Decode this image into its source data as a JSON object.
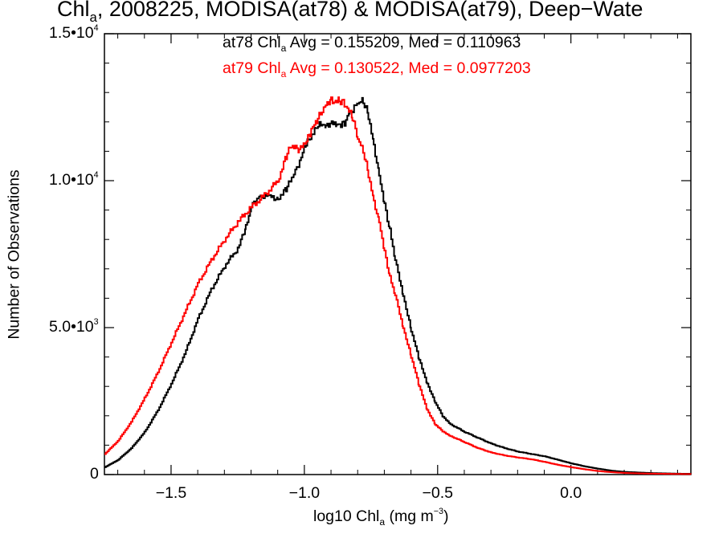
{
  "chart_data": {
    "type": "line",
    "step": true,
    "title": {
      "pre": "Chl",
      "sub": "a",
      "post": ", 2008225, MODISA(at78) & MODISA(at79), Deep−Wate"
    },
    "legend": [
      {
        "pre": "at78 Chl",
        "sub": "a",
        "post": " Avg = 0.155209, Med = 0.110963",
        "color": "#000000"
      },
      {
        "pre": "at79 Chl",
        "sub": "a",
        "post": " Avg = 0.130522, Med = 0.0977203",
        "color": "#ff0000"
      }
    ],
    "xlabel": {
      "pre": "log10 Chl",
      "sub": "a",
      "mid": " (mg m",
      "sup": "−3",
      "post": ")"
    },
    "ylabel": "Number of Observations",
    "xlim": [
      -1.75,
      0.45
    ],
    "ylim": [
      0,
      15000
    ],
    "xticks": [
      {
        "value": -1.5,
        "label": "−1.5"
      },
      {
        "value": -1.0,
        "label": "−1.0"
      },
      {
        "value": -0.5,
        "label": "−0.5"
      },
      {
        "value": 0.0,
        "label": "0.0"
      }
    ],
    "yticks": [
      {
        "value": 0,
        "mant": "0",
        "exp": ""
      },
      {
        "value": 5000,
        "mant": "5.0•10",
        "exp": "3"
      },
      {
        "value": 10000,
        "mant": "1.0•10",
        "exp": "4"
      },
      {
        "value": 15000,
        "mant": "1.5•10",
        "exp": "4"
      }
    ],
    "grid": false,
    "legend_position": "top-center",
    "series": [
      {
        "name": "at78",
        "color": "#000000",
        "points": [
          [
            -1.75,
            250
          ],
          [
            -1.7,
            500
          ],
          [
            -1.65,
            900
          ],
          [
            -1.6,
            1450
          ],
          [
            -1.55,
            2200
          ],
          [
            -1.5,
            3100
          ],
          [
            -1.45,
            4100
          ],
          [
            -1.4,
            5300
          ],
          [
            -1.35,
            6300
          ],
          [
            -1.3,
            7100
          ],
          [
            -1.25,
            7700
          ],
          [
            -1.22,
            8400
          ],
          [
            -1.2,
            9100
          ],
          [
            -1.17,
            9500
          ],
          [
            -1.13,
            9450
          ],
          [
            -1.1,
            9400
          ],
          [
            -1.07,
            9700
          ],
          [
            -1.04,
            10200
          ],
          [
            -1.0,
            11100
          ],
          [
            -0.96,
            11800
          ],
          [
            -0.92,
            11950
          ],
          [
            -0.88,
            11900
          ],
          [
            -0.85,
            12000
          ],
          [
            -0.83,
            12350
          ],
          [
            -0.8,
            12600
          ],
          [
            -0.78,
            12700
          ],
          [
            -0.76,
            12200
          ],
          [
            -0.74,
            11200
          ],
          [
            -0.72,
            10200
          ],
          [
            -0.7,
            9200
          ],
          [
            -0.68,
            8300
          ],
          [
            -0.66,
            7300
          ],
          [
            -0.63,
            6100
          ],
          [
            -0.6,
            4900
          ],
          [
            -0.57,
            3900
          ],
          [
            -0.54,
            3100
          ],
          [
            -0.51,
            2450
          ],
          [
            -0.48,
            1950
          ],
          [
            -0.45,
            1700
          ],
          [
            -0.4,
            1450
          ],
          [
            -0.35,
            1250
          ],
          [
            -0.3,
            1050
          ],
          [
            -0.25,
            900
          ],
          [
            -0.2,
            780
          ],
          [
            -0.15,
            700
          ],
          [
            -0.1,
            620
          ],
          [
            -0.05,
            500
          ],
          [
            0.0,
            380
          ],
          [
            0.05,
            280
          ],
          [
            0.1,
            200
          ],
          [
            0.15,
            130
          ],
          [
            0.2,
            90
          ],
          [
            0.25,
            70
          ],
          [
            0.3,
            50
          ],
          [
            0.35,
            40
          ],
          [
            0.4,
            30
          ],
          [
            0.45,
            25
          ]
        ]
      },
      {
        "name": "at79",
        "color": "#ff0000",
        "points": [
          [
            -1.75,
            700
          ],
          [
            -1.7,
            1150
          ],
          [
            -1.65,
            1800
          ],
          [
            -1.6,
            2600
          ],
          [
            -1.55,
            3500
          ],
          [
            -1.5,
            4500
          ],
          [
            -1.45,
            5500
          ],
          [
            -1.4,
            6500
          ],
          [
            -1.35,
            7300
          ],
          [
            -1.3,
            8000
          ],
          [
            -1.25,
            8600
          ],
          [
            -1.2,
            9100
          ],
          [
            -1.15,
            9500
          ],
          [
            -1.1,
            10000
          ],
          [
            -1.07,
            10800
          ],
          [
            -1.05,
            11200
          ],
          [
            -1.02,
            11000
          ],
          [
            -0.98,
            11600
          ],
          [
            -0.95,
            12100
          ],
          [
            -0.92,
            12650
          ],
          [
            -0.9,
            12750
          ],
          [
            -0.87,
            12700
          ],
          [
            -0.85,
            12650
          ],
          [
            -0.82,
            12100
          ],
          [
            -0.8,
            11400
          ],
          [
            -0.78,
            11000
          ],
          [
            -0.76,
            10200
          ],
          [
            -0.74,
            9300
          ],
          [
            -0.72,
            8600
          ],
          [
            -0.7,
            7600
          ],
          [
            -0.68,
            6700
          ],
          [
            -0.66,
            6100
          ],
          [
            -0.63,
            5000
          ],
          [
            -0.6,
            4000
          ],
          [
            -0.57,
            3000
          ],
          [
            -0.54,
            2200
          ],
          [
            -0.51,
            1700
          ],
          [
            -0.48,
            1450
          ],
          [
            -0.45,
            1300
          ],
          [
            -0.4,
            1100
          ],
          [
            -0.35,
            900
          ],
          [
            -0.3,
            750
          ],
          [
            -0.25,
            650
          ],
          [
            -0.2,
            580
          ],
          [
            -0.15,
            520
          ],
          [
            -0.1,
            430
          ],
          [
            -0.05,
            330
          ],
          [
            0.0,
            250
          ],
          [
            0.05,
            180
          ],
          [
            0.1,
            120
          ],
          [
            0.15,
            80
          ],
          [
            0.2,
            55
          ],
          [
            0.25,
            40
          ],
          [
            0.3,
            30
          ],
          [
            0.35,
            25
          ],
          [
            0.4,
            20
          ],
          [
            0.45,
            15
          ]
        ]
      }
    ]
  }
}
